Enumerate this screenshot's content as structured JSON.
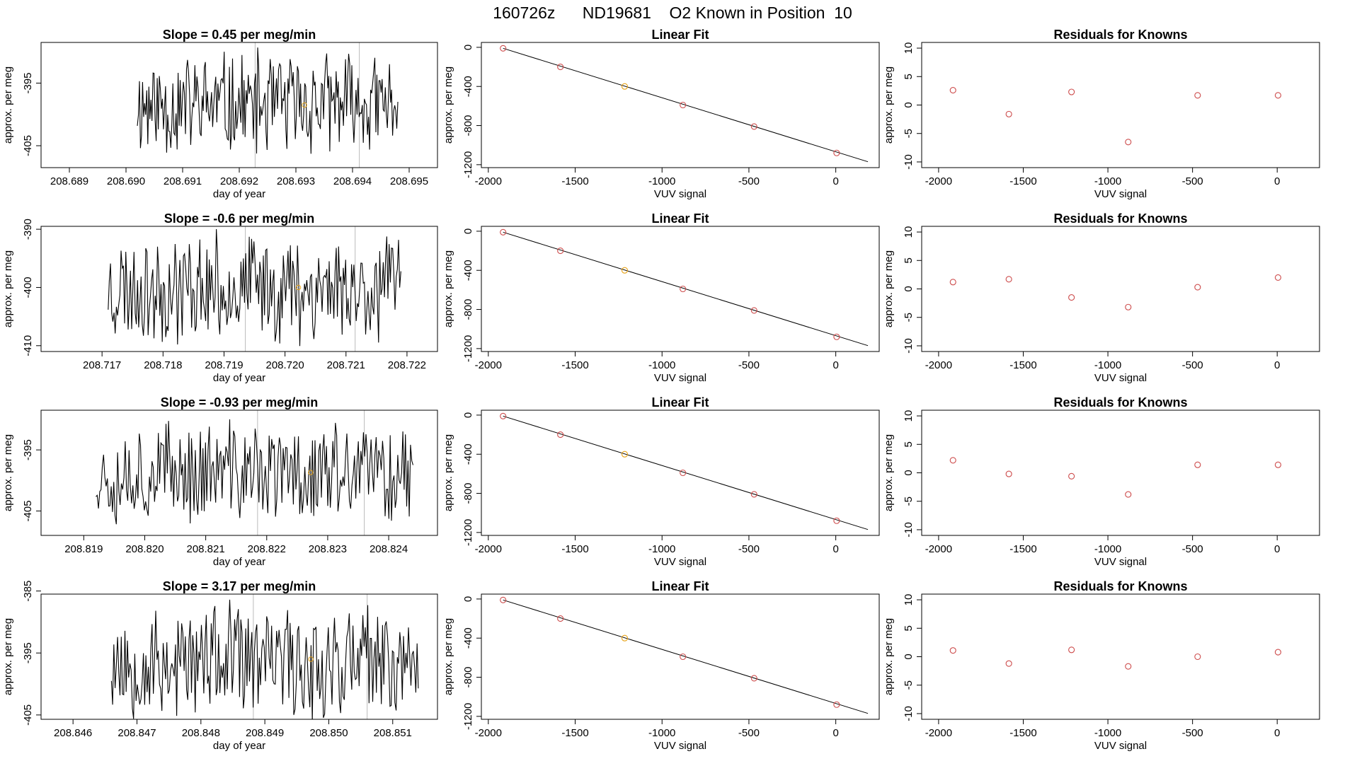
{
  "figure_title": "160726z      ND19681    O2 Known in Position  10",
  "colors": {
    "trace": "#000000",
    "point": "#cd4b4b",
    "highlight": "#e8a317",
    "vline": "#bbbbbb",
    "fit": "#000000"
  },
  "chart_data": [
    {
      "row": 0,
      "kind": "timeseries",
      "type": "line",
      "title": "Slope =  0.45  per meg/min",
      "xlabel": "day of year",
      "ylabel": "approx. per meg",
      "xlim": [
        208.6885,
        208.6955
      ],
      "ylim": [
        -408.5,
        -388.5
      ],
      "xticks": [
        208.689,
        208.69,
        208.691,
        208.692,
        208.693,
        208.694,
        208.695
      ],
      "xtick_labels": [
        "208.689",
        "208.690",
        "208.691",
        "208.692",
        "208.693",
        "208.694",
        "208.695"
      ],
      "yticks": [
        -395,
        -405
      ],
      "ytick_labels": [
        "-395",
        "-405"
      ],
      "x_start": 208.6902,
      "x_end": 208.6948,
      "n_points": 250,
      "seed": 11,
      "center": -398.5,
      "amplitude": 9.5,
      "vlines": [
        208.69228,
        208.69412
      ],
      "highlight_point": {
        "x": 208.69315,
        "y": -398.5
      }
    },
    {
      "row": 0,
      "kind": "fit",
      "type": "scatter",
      "title": "Linear Fit",
      "xlabel": "VUV signal",
      "ylabel": "approx. per meg",
      "xlim": [
        -2040,
        250
      ],
      "ylim": [
        -1230,
        50
      ],
      "xticks": [
        -2000,
        -1500,
        -1000,
        -500,
        0
      ],
      "xtick_labels": [
        "-2000",
        "-1500",
        "-1000",
        "-500",
        "0"
      ],
      "yticks": [
        0,
        -400,
        -800,
        -1200
      ],
      "ytick_labels": [
        "0",
        "-400",
        "-800",
        "-1200"
      ],
      "x": [
        -1915,
        -1585,
        -1215,
        -880,
        -470,
        5
      ],
      "y": [
        -10,
        -200,
        -400,
        -590,
        -810,
        -1080
      ],
      "highlight_index": 2,
      "fit_line": {
        "x": [
          -1915,
          185
        ],
        "y": [
          -10,
          -1170
        ]
      }
    },
    {
      "row": 0,
      "kind": "residuals",
      "type": "scatter",
      "title": "Residuals for Knowns",
      "xlabel": "VUV signal",
      "ylabel": "approx. per meg",
      "xlim": [
        -2100,
        250
      ],
      "ylim": [
        -11,
        11
      ],
      "xticks": [
        -2000,
        -1500,
        -1000,
        -500,
        0
      ],
      "xtick_labels": [
        "-2000",
        "-1500",
        "-1000",
        "-500",
        "0"
      ],
      "yticks": [
        10,
        5,
        0,
        -5,
        -10
      ],
      "ytick_labels": [
        "10",
        "5",
        "0",
        "-5",
        "-10"
      ],
      "x": [
        -1915,
        -1585,
        -1215,
        -880,
        -470,
        5
      ],
      "y": [
        2.6,
        -1.6,
        2.3,
        -6.5,
        1.7,
        1.7
      ]
    },
    {
      "row": 1,
      "kind": "timeseries",
      "type": "line",
      "title": "Slope =  -0.6  per meg/min",
      "xlabel": "day of year",
      "ylabel": "approx. per meg",
      "xlim": [
        208.716,
        208.7225
      ],
      "ylim": [
        -411,
        -389.5
      ],
      "xticks": [
        208.717,
        208.718,
        208.719,
        208.72,
        208.721,
        208.722
      ],
      "xtick_labels": [
        "208.717",
        "208.718",
        "208.719",
        "208.720",
        "208.721",
        "208.722"
      ],
      "yticks": [
        -390,
        -400,
        -410
      ],
      "ytick_labels": [
        "-390",
        "-400",
        "-410"
      ],
      "x_start": 208.7171,
      "x_end": 208.7219,
      "n_points": 250,
      "seed": 23,
      "center": -400.0,
      "amplitude": 10.5,
      "vlines": [
        208.71935,
        208.72115
      ],
      "highlight_point": {
        "x": 208.72022,
        "y": -400.0
      }
    },
    {
      "row": 1,
      "kind": "fit",
      "type": "scatter",
      "title": "Linear Fit",
      "xlabel": "VUV signal",
      "ylabel": "approx. per meg",
      "xlim": [
        -2040,
        250
      ],
      "ylim": [
        -1230,
        50
      ],
      "xticks": [
        -2000,
        -1500,
        -1000,
        -500,
        0
      ],
      "xtick_labels": [
        "-2000",
        "-1500",
        "-1000",
        "-500",
        "0"
      ],
      "yticks": [
        0,
        -400,
        -800,
        -1200
      ],
      "ytick_labels": [
        "0",
        "-400",
        "-800",
        "-1200"
      ],
      "x": [
        -1915,
        -1585,
        -1215,
        -880,
        -470,
        5
      ],
      "y": [
        -10,
        -200,
        -400,
        -590,
        -810,
        -1080
      ],
      "highlight_index": 2,
      "fit_line": {
        "x": [
          -1915,
          185
        ],
        "y": [
          -10,
          -1170
        ]
      }
    },
    {
      "row": 1,
      "kind": "residuals",
      "type": "scatter",
      "title": "Residuals for Knowns",
      "xlabel": "VUV signal",
      "ylabel": "approx. per meg",
      "xlim": [
        -2100,
        250
      ],
      "ylim": [
        -11,
        11
      ],
      "xticks": [
        -2000,
        -1500,
        -1000,
        -500,
        0
      ],
      "xtick_labels": [
        "-2000",
        "-1500",
        "-1000",
        "-500",
        "0"
      ],
      "yticks": [
        10,
        5,
        0,
        -5,
        -10
      ],
      "ytick_labels": [
        "10",
        "5",
        "0",
        "-5",
        "-10"
      ],
      "x": [
        -1915,
        -1585,
        -1215,
        -880,
        -470,
        5
      ],
      "y": [
        1.2,
        1.7,
        -1.5,
        -3.2,
        0.3,
        2.0
      ]
    },
    {
      "row": 2,
      "kind": "timeseries",
      "type": "line",
      "title": "Slope =  -0.93  per meg/min",
      "xlabel": "day of year",
      "ylabel": "approx. per meg",
      "xlim": [
        208.8183,
        208.8248
      ],
      "ylim": [
        -409,
        -388.5
      ],
      "xticks": [
        208.819,
        208.82,
        208.821,
        208.822,
        208.823,
        208.824
      ],
      "xtick_labels": [
        "208.819",
        "208.820",
        "208.821",
        "208.822",
        "208.823",
        "208.824"
      ],
      "yticks": [
        -395,
        -405
      ],
      "ytick_labels": [
        "-395",
        "-405"
      ],
      "x_start": 208.8192,
      "x_end": 208.8244,
      "n_points": 250,
      "seed": 37,
      "center": -398.7,
      "amplitude": 9.5,
      "vlines": [
        208.82185,
        208.8236
      ],
      "highlight_point": {
        "x": 208.82272,
        "y": -398.7
      }
    },
    {
      "row": 2,
      "kind": "fit",
      "type": "scatter",
      "title": "Linear Fit",
      "xlabel": "VUV signal",
      "ylabel": "approx. per meg",
      "xlim": [
        -2040,
        250
      ],
      "ylim": [
        -1230,
        50
      ],
      "xticks": [
        -2000,
        -1500,
        -1000,
        -500,
        0
      ],
      "xtick_labels": [
        "-2000",
        "-1500",
        "-1000",
        "-500",
        "0"
      ],
      "yticks": [
        0,
        -400,
        -800,
        -1200
      ],
      "ytick_labels": [
        "0",
        "-400",
        "-800",
        "-1200"
      ],
      "x": [
        -1915,
        -1585,
        -1215,
        -880,
        -470,
        5
      ],
      "y": [
        -10,
        -200,
        -400,
        -590,
        -810,
        -1080
      ],
      "highlight_index": 2,
      "fit_line": {
        "x": [
          -1915,
          185
        ],
        "y": [
          -10,
          -1170
        ]
      }
    },
    {
      "row": 2,
      "kind": "residuals",
      "type": "scatter",
      "title": "Residuals for Knowns",
      "xlabel": "VUV signal",
      "ylabel": "approx. per meg",
      "xlim": [
        -2100,
        250
      ],
      "ylim": [
        -11,
        11
      ],
      "xticks": [
        -2000,
        -1500,
        -1000,
        -500,
        0
      ],
      "xtick_labels": [
        "-2000",
        "-1500",
        "-1000",
        "-500",
        "0"
      ],
      "yticks": [
        10,
        5,
        0,
        -5,
        -10
      ],
      "ytick_labels": [
        "10",
        "5",
        "0",
        "-5",
        "-10"
      ],
      "x": [
        -1915,
        -1585,
        -1215,
        -880,
        -470,
        5
      ],
      "y": [
        2.2,
        -0.2,
        -0.6,
        -3.8,
        1.4,
        1.4
      ]
    },
    {
      "row": 3,
      "kind": "timeseries",
      "type": "line",
      "title": "Slope =  3.17  per meg/min",
      "xlabel": "day of year",
      "ylabel": "approx. per meg",
      "xlim": [
        208.8455,
        208.8517
      ],
      "ylim": [
        -405.7,
        -385.5
      ],
      "xticks": [
        208.846,
        208.847,
        208.848,
        208.849,
        208.85,
        208.851
      ],
      "xtick_labels": [
        "208.846",
        "208.847",
        "208.848",
        "208.849",
        "208.850",
        "208.851"
      ],
      "yticks": [
        -385,
        -395,
        -405
      ],
      "ytick_labels": [
        "-385",
        "-395",
        "-405"
      ],
      "x_start": 208.8466,
      "x_end": 208.8514,
      "n_points": 250,
      "seed": 53,
      "center": -396.5,
      "amplitude": 10.5,
      "vlines": [
        208.84882,
        208.8506
      ],
      "highlight_point": {
        "x": 208.84972,
        "y": -396.0
      }
    },
    {
      "row": 3,
      "kind": "fit",
      "type": "scatter",
      "title": "Linear Fit",
      "xlabel": "VUV signal",
      "ylabel": "approx. per meg",
      "xlim": [
        -2040,
        250
      ],
      "ylim": [
        -1230,
        50
      ],
      "xticks": [
        -2000,
        -1500,
        -1000,
        -500,
        0
      ],
      "xtick_labels": [
        "-2000",
        "-1500",
        "-1000",
        "-500",
        "0"
      ],
      "yticks": [
        0,
        -400,
        -800,
        -1200
      ],
      "ytick_labels": [
        "0",
        "-400",
        "-800",
        "-1200"
      ],
      "x": [
        -1915,
        -1585,
        -1215,
        -880,
        -470,
        5
      ],
      "y": [
        -10,
        -200,
        -400,
        -590,
        -810,
        -1080
      ],
      "highlight_index": 2,
      "fit_line": {
        "x": [
          -1915,
          185
        ],
        "y": [
          -10,
          -1170
        ]
      }
    },
    {
      "row": 3,
      "kind": "residuals",
      "type": "scatter",
      "title": "Residuals for Knowns",
      "xlabel": "VUV signal",
      "ylabel": "approx. per meg",
      "xlim": [
        -2100,
        250
      ],
      "ylim": [
        -11,
        11
      ],
      "xticks": [
        -2000,
        -1500,
        -1000,
        -500,
        0
      ],
      "xtick_labels": [
        "-2000",
        "-1500",
        "-1000",
        "-500",
        "0"
      ],
      "yticks": [
        10,
        5,
        0,
        -5,
        -10
      ],
      "ytick_labels": [
        "10",
        "5",
        "0",
        "-5",
        "-10"
      ],
      "x": [
        -1915,
        -1585,
        -1215,
        -880,
        -470,
        5
      ],
      "y": [
        1.1,
        -1.2,
        1.2,
        -1.7,
        0.0,
        0.8
      ]
    }
  ]
}
